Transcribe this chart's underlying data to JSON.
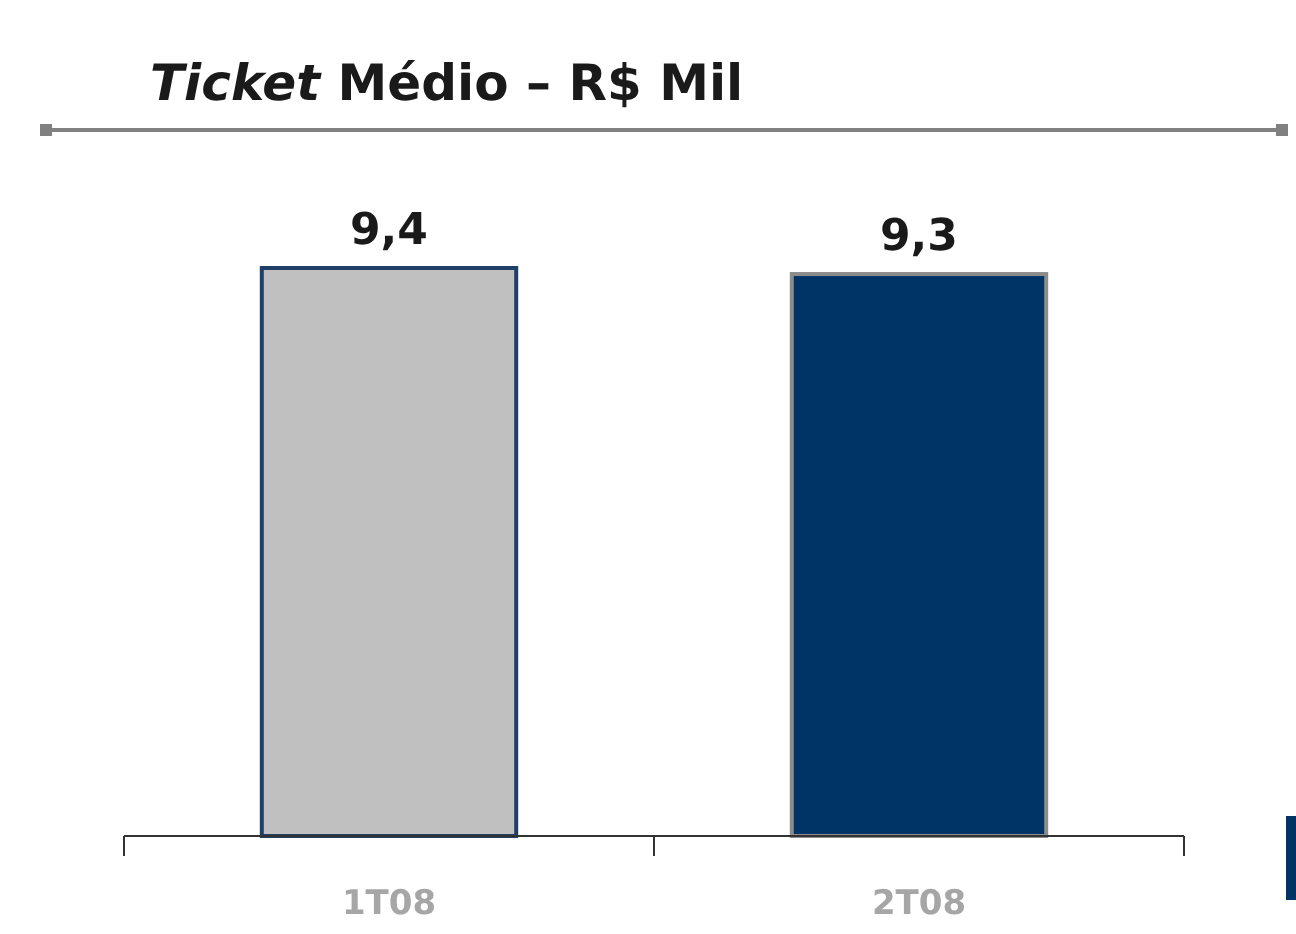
{
  "chart_data": {
    "type": "bar",
    "title": "Ticket Médio – R$ Mil",
    "categories": [
      "1T08",
      "2T08"
    ],
    "values": [
      9.4,
      9.3
    ],
    "colors": [
      "#c0c0c0",
      "#003366"
    ],
    "value_labels": [
      "9,4",
      "9,3"
    ]
  }
}
